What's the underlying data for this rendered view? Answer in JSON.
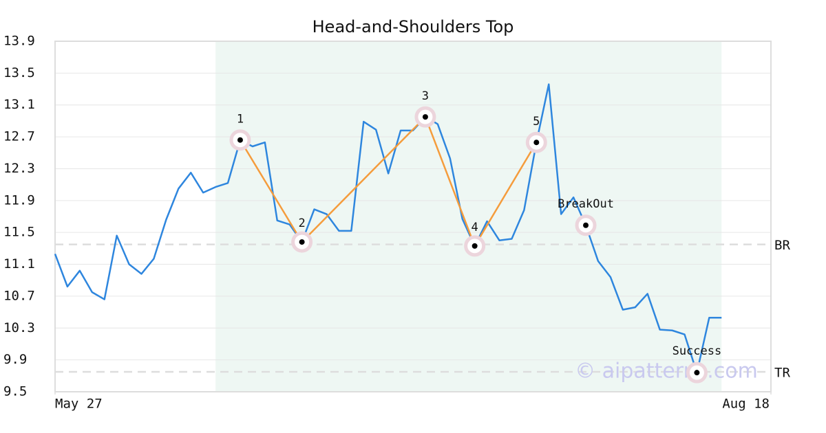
{
  "chart_data": {
    "type": "line",
    "title": "Head-and-Shoulders Top",
    "x": [
      0,
      1,
      2,
      3,
      4,
      5,
      6,
      7,
      8,
      9,
      10,
      11,
      12,
      13,
      14,
      15,
      16,
      17,
      18,
      19,
      20,
      21,
      22,
      23,
      24,
      25,
      26,
      27,
      28,
      29,
      30,
      31,
      32,
      33,
      34,
      35,
      36,
      37,
      38,
      39,
      40,
      41,
      42,
      43,
      44,
      45,
      46,
      47,
      48,
      49,
      50,
      51,
      52,
      53,
      54
    ],
    "values": [
      11.23,
      10.82,
      11.02,
      10.75,
      10.66,
      11.46,
      11.1,
      10.98,
      11.17,
      11.66,
      12.05,
      12.25,
      12.0,
      12.07,
      12.12,
      12.66,
      12.58,
      12.63,
      11.65,
      11.6,
      11.38,
      11.79,
      11.73,
      11.52,
      11.52,
      12.89,
      12.79,
      12.24,
      12.78,
      12.78,
      12.95,
      12.86,
      12.43,
      11.67,
      11.33,
      11.64,
      11.4,
      11.42,
      11.78,
      12.63,
      13.36,
      11.73,
      11.94,
      11.59,
      11.14,
      10.94,
      10.53,
      10.56,
      10.73,
      10.28,
      10.27,
      10.22,
      9.74,
      10.43,
      10.43
    ],
    "color": "#2e86de",
    "xlim": [
      0,
      58
    ],
    "xticks": [
      {
        "value": 0,
        "label": "May 27"
      },
      {
        "value": 58,
        "label": "Aug 18"
      }
    ],
    "ylim": [
      9.5,
      13.9
    ],
    "yticks": [
      9.5,
      9.9,
      10.3,
      10.7,
      11.1,
      11.5,
      11.9,
      12.3,
      12.7,
      13.1,
      13.5,
      13.9
    ],
    "grid": true,
    "shade_x": [
      13,
      54
    ],
    "pattern_color": "#f59c3c",
    "pattern_points": [
      {
        "label": "1",
        "x": 15,
        "value": 12.66
      },
      {
        "label": "2",
        "x": 20,
        "value": 11.38
      },
      {
        "label": "3",
        "x": 30,
        "value": 12.95
      },
      {
        "label": "4",
        "x": 34,
        "value": 11.33
      },
      {
        "label": "5",
        "x": 39,
        "value": 12.63
      }
    ],
    "event_points": [
      {
        "label": "BreakOut",
        "x": 43,
        "value": 11.59
      },
      {
        "label": "Success",
        "x": 52,
        "value": 9.74
      }
    ],
    "levels": [
      {
        "label": "BR",
        "value": 11.35
      },
      {
        "label": "TR",
        "value": 9.75
      }
    ],
    "watermark": "© aipatterns.com"
  }
}
